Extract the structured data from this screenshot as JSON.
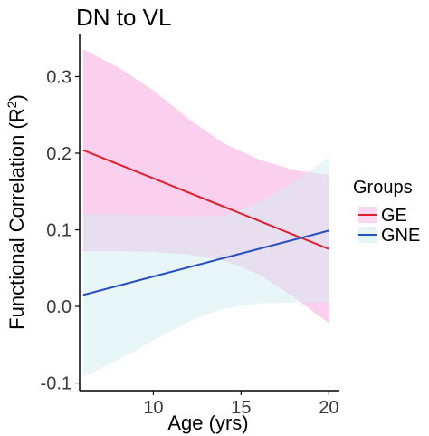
{
  "chart_data": {
    "type": "line",
    "title": "DN to VL",
    "xlabel": "Age (yrs)",
    "ylabel_main": "Functional Correlation (R",
    "ylabel_sup": "2",
    "ylabel_close": ")",
    "xlim": [
      5.8,
      20.6
    ],
    "ylim": [
      -0.11,
      0.355
    ],
    "x_ticks": [
      10,
      15,
      20
    ],
    "y_ticks": [
      -0.1,
      0.0,
      0.1,
      0.2,
      0.3
    ],
    "y_tick_labels": [
      "-0.1",
      "0.0",
      "0.1",
      "0.2",
      "0.3"
    ],
    "x_tick_labels": [
      "10",
      "15",
      "20"
    ],
    "grid": false,
    "legend": {
      "title": "Groups",
      "position": "right"
    },
    "series": [
      {
        "name": "GE",
        "color": "#e0202e",
        "band_color": "#f7a8e0",
        "x": [
          6,
          20
        ],
        "fit": [
          0.204,
          0.075
        ],
        "ci_lower": [
          [
            6,
            0.072
          ],
          [
            8,
            0.072
          ],
          [
            10,
            0.071
          ],
          [
            12,
            0.068
          ],
          [
            14,
            0.06
          ],
          [
            16,
            0.042
          ],
          [
            18,
            0.012
          ],
          [
            20,
            -0.022
          ]
        ],
        "ci_upper": [
          [
            6,
            0.336
          ],
          [
            8,
            0.312
          ],
          [
            10,
            0.282
          ],
          [
            12,
            0.245
          ],
          [
            14,
            0.213
          ],
          [
            16,
            0.192
          ],
          [
            18,
            0.178
          ],
          [
            20,
            0.172
          ]
        ]
      },
      {
        "name": "GNE",
        "color": "#2a4fc0",
        "band_color": "#d4edf2",
        "x": [
          6,
          20
        ],
        "fit": [
          0.015,
          0.099
        ],
        "ci_lower": [
          [
            6,
            -0.092
          ],
          [
            8,
            -0.07
          ],
          [
            10,
            -0.045
          ],
          [
            12,
            -0.02
          ],
          [
            14,
            -0.003
          ],
          [
            16,
            0.004
          ],
          [
            18,
            0.005
          ],
          [
            20,
            0.005
          ]
        ],
        "ci_upper": [
          [
            6,
            0.12
          ],
          [
            8,
            0.12
          ],
          [
            10,
            0.119
          ],
          [
            12,
            0.117
          ],
          [
            14,
            0.119
          ],
          [
            16,
            0.136
          ],
          [
            18,
            0.162
          ],
          [
            20,
            0.195
          ]
        ]
      }
    ]
  }
}
